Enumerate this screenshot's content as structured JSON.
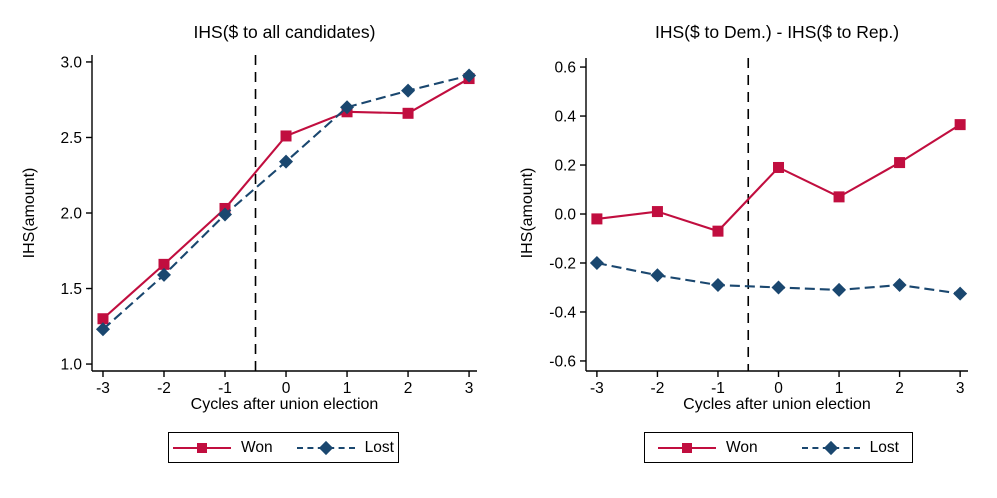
{
  "figure": {
    "background": "#ffffff",
    "text_color": "#000000",
    "axis_color": "#000000",
    "colors": {
      "won": "#c10e3f",
      "lost": "#1a476f",
      "vline": "#000000"
    }
  },
  "legend": {
    "won_label": "Won",
    "lost_label": "Lost"
  },
  "chart_data": [
    {
      "type": "line",
      "title": "IHS($ to all candidates)",
      "xlabel": "Cycles after union election",
      "ylabel": "IHS(amount)",
      "x": [
        -3,
        -2,
        -1,
        0,
        1,
        2,
        3
      ],
      "xtick_labels": [
        "-3",
        "-2",
        "-1",
        "0",
        "1",
        "2",
        "3"
      ],
      "yticks": [
        1.0,
        1.5,
        2.0,
        2.5,
        3.0
      ],
      "ytick_labels": [
        "1.0",
        "1.5",
        "2.0",
        "2.5",
        "3.0"
      ],
      "xlim": [
        -3.18,
        3.13
      ],
      "ylim": [
        0.954,
        3.046
      ],
      "vline_x": -0.5,
      "vline_style": "dashed",
      "grid": false,
      "legend_position": "bottom-center",
      "series": [
        {
          "name": "Won",
          "marker": "square",
          "line": "solid",
          "color": "#c10e3f",
          "values": [
            1.3,
            1.66,
            2.03,
            2.51,
            2.67,
            2.66,
            2.89
          ]
        },
        {
          "name": "Lost",
          "marker": "diamond",
          "line": "dashed",
          "color": "#1a476f",
          "values": [
            1.23,
            1.59,
            1.99,
            2.34,
            2.7,
            2.81,
            2.91
          ]
        }
      ]
    },
    {
      "type": "line",
      "title": "IHS($ to Dem.) - IHS($ to Rep.)",
      "xlabel": "Cycles after union election",
      "ylabel": "IHS(amount)",
      "x": [
        -3,
        -2,
        -1,
        0,
        1,
        2,
        3
      ],
      "xtick_labels": [
        "-3",
        "-2",
        "-1",
        "0",
        "1",
        "2",
        "3"
      ],
      "yticks": [
        -0.6,
        -0.4,
        -0.2,
        0.0,
        0.2,
        0.4,
        0.6
      ],
      "ytick_labels": [
        "-0.6",
        "-0.4",
        "-0.2",
        "0.0",
        "0.2",
        "0.4",
        "0.6"
      ],
      "xlim": [
        -3.18,
        3.13
      ],
      "ylim": [
        -0.641,
        0.637
      ],
      "vline_x": -0.5,
      "vline_style": "dashed",
      "grid": false,
      "legend_position": "bottom-center",
      "series": [
        {
          "name": "Won",
          "marker": "square",
          "line": "solid",
          "color": "#c10e3f",
          "values": [
            -0.02,
            0.01,
            -0.07,
            0.19,
            0.07,
            0.21,
            0.365
          ]
        },
        {
          "name": "Lost",
          "marker": "diamond",
          "line": "dashed",
          "color": "#1a476f",
          "values": [
            -0.2,
            -0.25,
            -0.29,
            -0.3,
            -0.31,
            -0.29,
            -0.325
          ]
        }
      ]
    }
  ]
}
